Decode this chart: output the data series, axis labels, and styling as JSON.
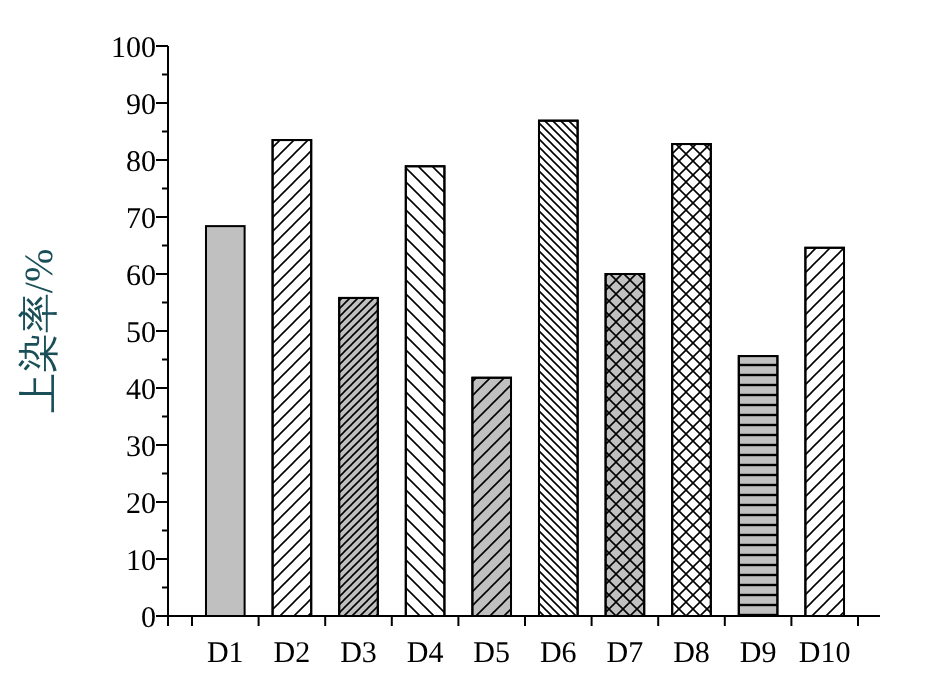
{
  "chart_data": {
    "type": "bar",
    "ylabel": "上染率/%",
    "categories": [
      "D1",
      "D2",
      "D3",
      "D4",
      "D5",
      "D6",
      "D7",
      "D8",
      "D9",
      "D10"
    ],
    "values": [
      68.4,
      83.5,
      55.8,
      78.9,
      41.8,
      86.9,
      60,
      82.8,
      45.6,
      64.6
    ],
    "colors": [
      "#c0c0c0",
      "#ffffff",
      "#c0c0c0",
      "#ffffff",
      "#c0c0c0",
      "#ffffff",
      "#c0c0c0",
      "#ffffff",
      "#c0c0c0",
      "#ffffff"
    ],
    "ylim": [
      0,
      100
    ],
    "yticks": [
      0,
      {
        "value": 5,
        "label": null
      },
      10,
      {
        "value": 15,
        "label": null
      },
      20,
      {
        "value": 25,
        "label": null
      },
      30,
      {
        "value": 35,
        "label": null
      },
      40,
      {
        "value": 45,
        "label": null
      },
      50,
      {
        "value": 55,
        "label": null
      },
      60,
      {
        "value": 65,
        "label": null
      },
      70,
      {
        "value": 75,
        "label": null
      },
      80,
      {
        "value": 85,
        "label": null
      },
      90,
      {
        "value": 95,
        "label": null
      },
      100
    ],
    "grid": false
  }
}
